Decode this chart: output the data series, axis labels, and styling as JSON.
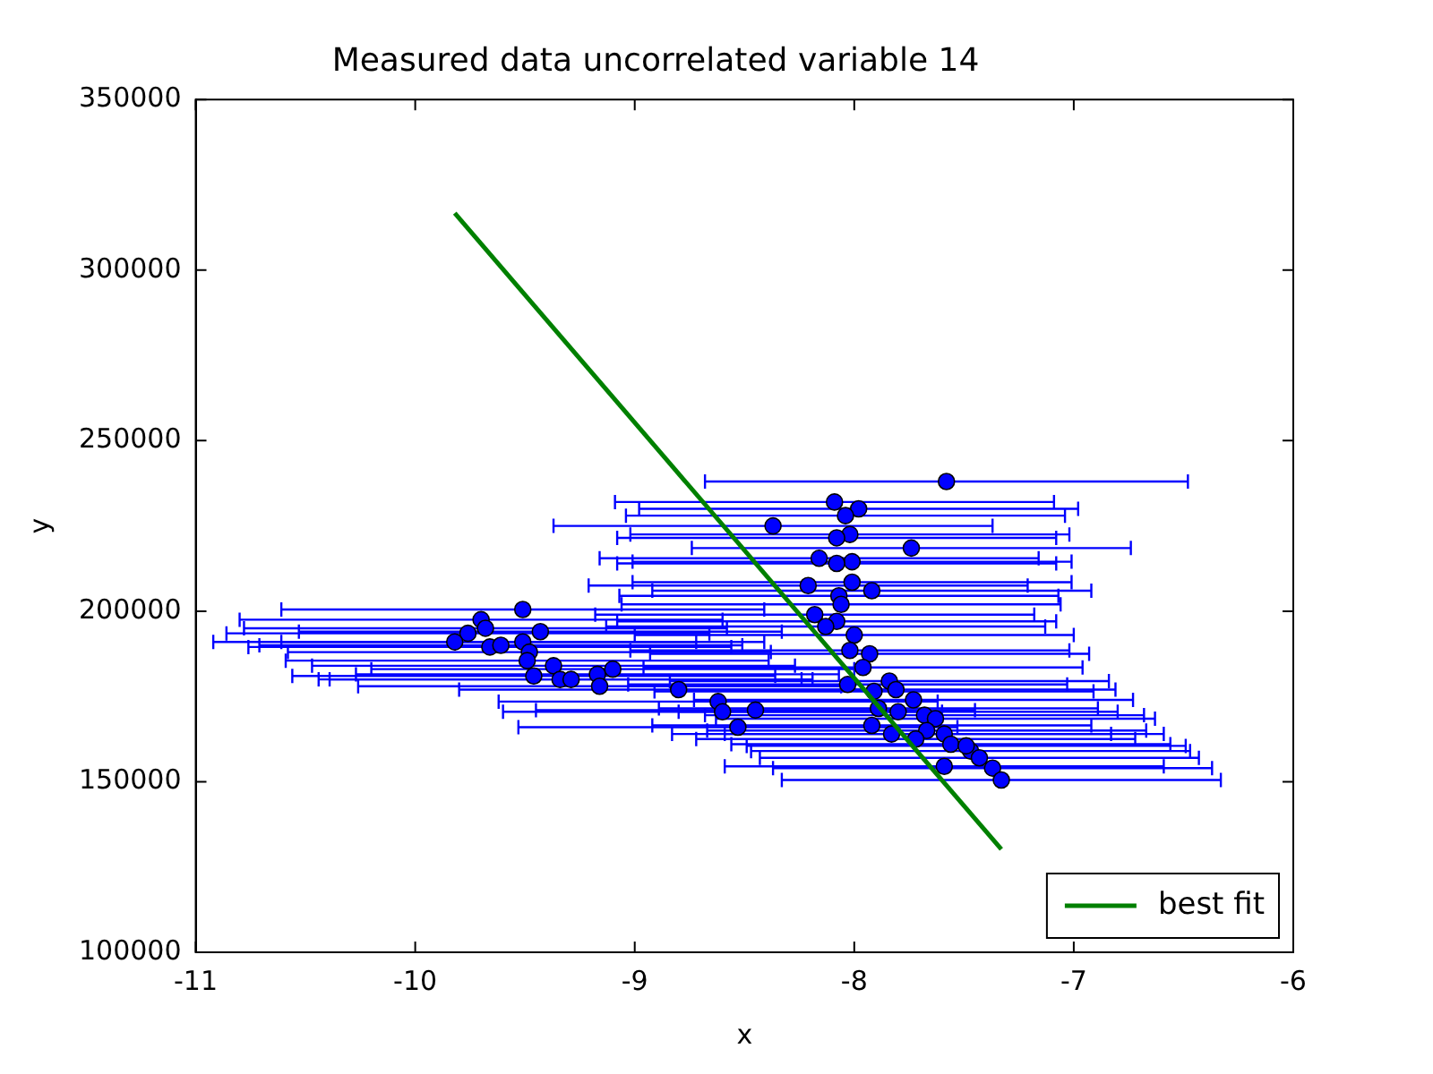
{
  "chart_data": {
    "type": "scatter",
    "title": "Measured data uncorrelated variable 14",
    "xlabel": "x",
    "ylabel": "y",
    "xlim": [
      -11,
      -6
    ],
    "xticks": [
      -11,
      -10,
      -9,
      -8,
      -7,
      -6
    ],
    "ylim": [
      100000,
      350000
    ],
    "yticks": [
      100000,
      150000,
      200000,
      250000,
      300000,
      350000
    ],
    "grid": false,
    "legend": "bottom right",
    "series": [
      {
        "type": "scatter",
        "color": "#0000ff",
        "marker": "circle",
        "x": [
          -9.7,
          -9.51,
          -9.76,
          -9.68,
          -9.82,
          -9.66,
          -9.61,
          -9.43,
          -9.51,
          -9.48,
          -9.49,
          -9.37,
          -9.46,
          -9.34,
          -9.29,
          -9.17,
          -9.1,
          -9.16,
          -7.58,
          -8.09,
          -7.98,
          -8.04,
          -8.37,
          -8.02,
          -8.08,
          -7.74,
          -8.16,
          -8.01,
          -8.08,
          -8.01,
          -8.21,
          -7.92,
          -8.07,
          -8.18,
          -8.06,
          -8.08,
          -8.13,
          -8.0,
          -8.02,
          -7.93,
          -7.96,
          -8.03,
          -7.84,
          -7.91,
          -7.81,
          -7.73,
          -7.89,
          -7.8,
          -7.68,
          -7.63,
          -7.92,
          -7.83,
          -7.67,
          -7.59,
          -7.56,
          -7.47,
          -7.59,
          -7.43,
          -7.37,
          -7.33,
          -7.49,
          -7.72,
          -8.8,
          -8.62,
          -8.6,
          -8.45,
          -8.53
        ],
        "values": [
          197500,
          200500,
          193500,
          195000,
          191000,
          189500,
          190000,
          194000,
          191000,
          188000,
          185500,
          184000,
          181000,
          180000,
          180000,
          181500,
          183000,
          178000,
          238000,
          232000,
          230000,
          228000,
          225000,
          222500,
          221500,
          218500,
          215500,
          214500,
          214000,
          208500,
          207500,
          206000,
          204500,
          199000,
          202000,
          197000,
          195500,
          193000,
          188500,
          187500,
          183500,
          178500,
          179500,
          176500,
          177000,
          174000,
          171500,
          170500,
          169500,
          168500,
          166500,
          164000,
          165000,
          164000,
          161000,
          159000,
          154500,
          157000,
          154000,
          150500,
          160500,
          162500,
          177000,
          173500,
          170500,
          171000,
          166000
        ],
        "xerrors": [
          1.1,
          1.1,
          1.1,
          1.1,
          1.1,
          1.1,
          1.1,
          1.1,
          1.1,
          1.1,
          1.1,
          1.1,
          1.1,
          1.1,
          1.1,
          1.1,
          1.1,
          1.1,
          1.1,
          1.0,
          1.0,
          1.0,
          1.0,
          1.0,
          1.0,
          1.0,
          1.0,
          1.0,
          1.0,
          1.0,
          1.0,
          1.0,
          1.0,
          1.0,
          1.0,
          1.0,
          1.0,
          1.0,
          1.0,
          1.0,
          1.0,
          1.0,
          1.0,
          1.0,
          1.0,
          1.0,
          1.0,
          1.0,
          1.0,
          1.0,
          1.0,
          1.0,
          1.0,
          1.0,
          1.0,
          1.0,
          1.0,
          1.0,
          1.0,
          1.0,
          1.0,
          1.0,
          1.0,
          1.0,
          1.0,
          1.0,
          1.0
        ]
      },
      {
        "type": "line",
        "name": "best fit",
        "color": "#008000",
        "marker": "none",
        "x": [
          -9.82,
          -7.33
        ],
        "values": [
          316700,
          130200
        ]
      }
    ]
  }
}
